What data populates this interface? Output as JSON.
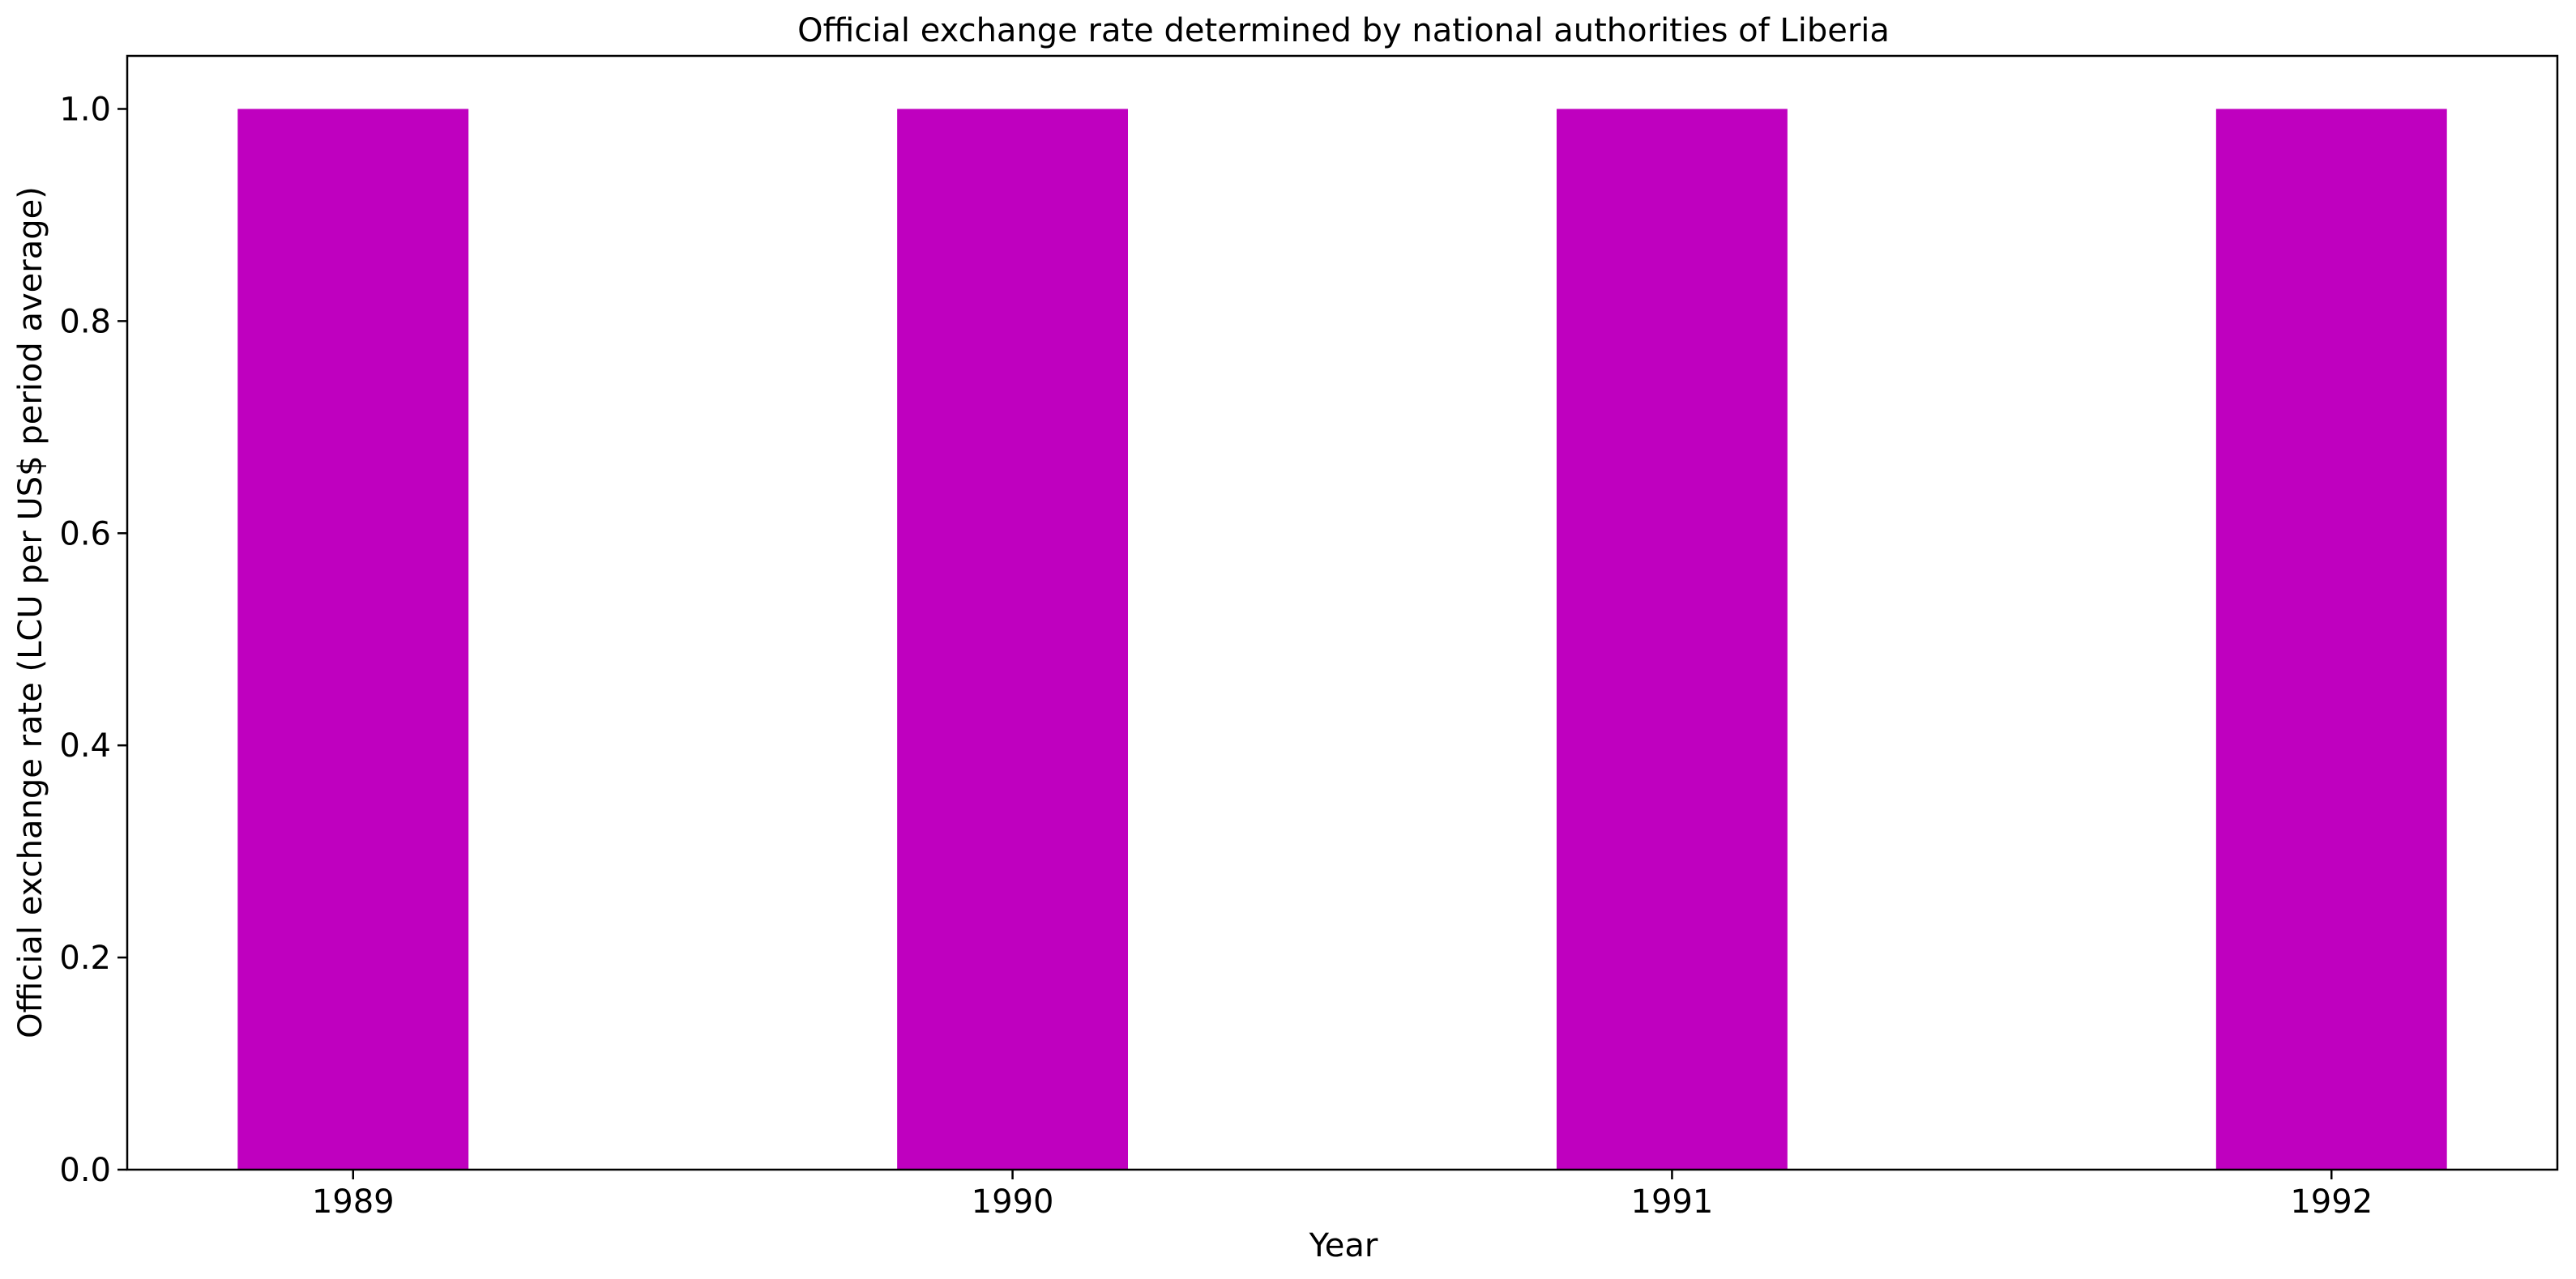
{
  "chart_data": {
    "type": "bar",
    "title": "Official exchange rate determined by national authorities of Liberia",
    "xlabel": "Year",
    "ylabel": "Official exchange rate (LCU per US$ period average)",
    "categories": [
      "1989",
      "1990",
      "1991",
      "1992"
    ],
    "values": [
      1.0,
      1.0,
      1.0,
      1.0
    ],
    "ylim": [
      0,
      1.05
    ],
    "yticks": [
      "0.0",
      "0.2",
      "0.4",
      "0.6",
      "0.8",
      "1.0"
    ],
    "bar_color": "#bf00bf",
    "grid": false,
    "legend": "none"
  }
}
